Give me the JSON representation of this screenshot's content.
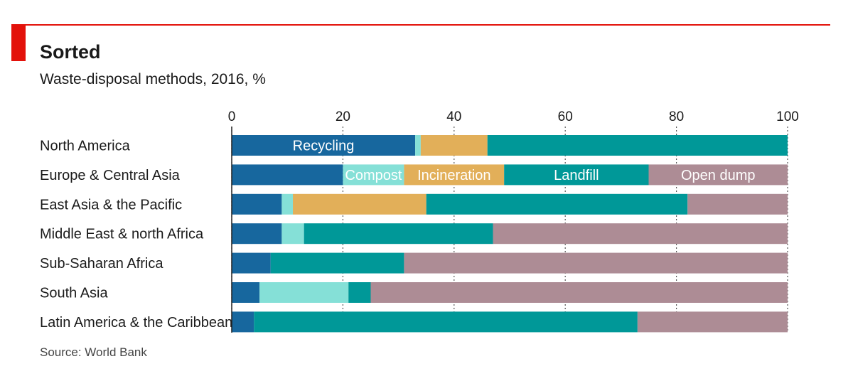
{
  "header": {
    "title": "Sorted",
    "subtitle": "Waste-disposal methods, 2016, %"
  },
  "footer": {
    "source": "Source: World Bank"
  },
  "chart_data": {
    "type": "bar",
    "orientation": "horizontal",
    "stacked": true,
    "title": "Sorted",
    "subtitle": "Waste-disposal methods, 2016, %",
    "xlim": [
      0,
      100
    ],
    "xticks": [
      0,
      20,
      40,
      60,
      80,
      100
    ],
    "grid": true,
    "legend": "inline",
    "categories": [
      "North America",
      "Europe & Central Asia",
      "East Asia & the Pacific",
      "Middle East & north Africa",
      "Sub-Saharan Africa",
      "South Asia",
      "Latin America & the Caribbean"
    ],
    "series": [
      {
        "name": "Recycling",
        "color": "#17679e",
        "values": [
          33,
          20,
          9,
          9,
          7,
          5,
          4
        ]
      },
      {
        "name": "Compost",
        "color": "#85e0d7",
        "values": [
          1,
          11,
          2,
          4,
          0,
          16,
          0
        ]
      },
      {
        "name": "Incineration",
        "color": "#e2af59",
        "values": [
          12,
          18,
          24,
          0,
          0,
          0,
          0
        ]
      },
      {
        "name": "Landfill",
        "color": "#009898",
        "values": [
          54,
          26,
          47,
          34,
          24,
          4,
          69
        ]
      },
      {
        "name": "Open dump",
        "color": "#ad8c95",
        "values": [
          0,
          25,
          18,
          53,
          69,
          75,
          27
        ]
      }
    ],
    "annotations": [
      {
        "text": "Recycling",
        "category_index": 0,
        "series_index": 0
      },
      {
        "text": "Compost",
        "category_index": 1,
        "series_index": 1
      },
      {
        "text": "Incineration",
        "category_index": 1,
        "series_index": 2
      },
      {
        "text": "Landfill",
        "category_index": 1,
        "series_index": 3
      },
      {
        "text": "Open dump",
        "category_index": 1,
        "series_index": 4
      }
    ]
  }
}
